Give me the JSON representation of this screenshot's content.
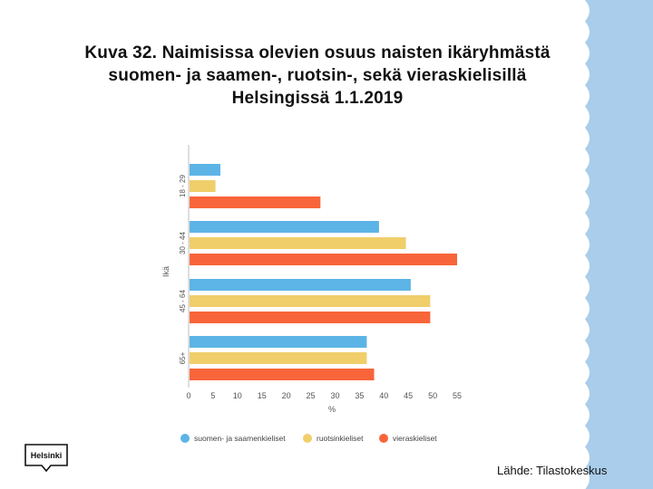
{
  "title": "Kuva 32. Naimisissa olevien osuus naisten ikäryhmästä suomen- ja saamen-, ruotsin-, sekä vieraskielisillä Helsingissä 1.1.2019",
  "source": "Lähde: Tilastokeskus",
  "logo_text": "Helsinki",
  "colors": {
    "accent_wave": "#a9cdea"
  },
  "chart_data": {
    "type": "bar",
    "orientation": "horizontal",
    "categories": [
      "18 - 29",
      "30 - 44",
      "45 - 64",
      "65+"
    ],
    "xlabel": "%",
    "ylabel": "Ikä",
    "xlim": [
      0,
      55
    ],
    "xticks": [
      "0",
      "5",
      "10",
      "15",
      "20",
      "25",
      "30",
      "35",
      "40",
      "45",
      "50",
      "55"
    ],
    "grid": false,
    "legend_position": "bottom",
    "series": [
      {
        "name": "suomen- ja saamenkieliset",
        "color": "#5cb4e6",
        "values": [
          6.5,
          39,
          45.5,
          36.5
        ]
      },
      {
        "name": "ruotsinkieliset",
        "color": "#f0ce6a",
        "values": [
          5.5,
          44.5,
          49.5,
          36.5
        ]
      },
      {
        "name": "vieraskieliset",
        "color": "#f9653a",
        "values": [
          27,
          55,
          49.5,
          38
        ]
      }
    ]
  }
}
